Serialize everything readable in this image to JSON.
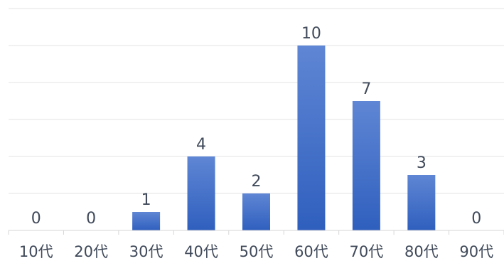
{
  "chart_data": {
    "type": "bar",
    "categories": [
      "10代",
      "20代",
      "30代",
      "40代",
      "50代",
      "60代",
      "70代",
      "80代",
      "90代"
    ],
    "values": [
      0,
      0,
      1,
      4,
      2,
      10,
      7,
      3,
      0
    ],
    "ylim": [
      0,
      12
    ],
    "grid": true,
    "bar_color_top": "#5f86d4",
    "bar_color_bottom": "#2f5fbe"
  }
}
